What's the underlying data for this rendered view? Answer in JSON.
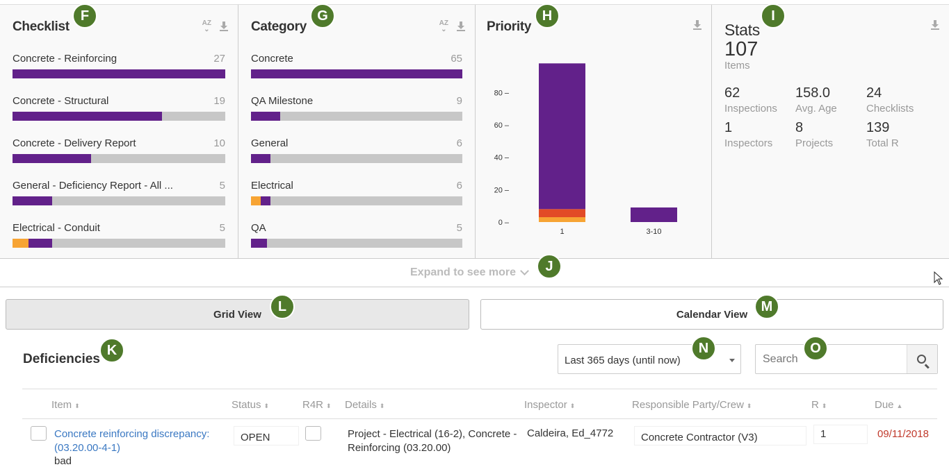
{
  "checklist": {
    "title": "Checklist",
    "sort_label": "AZ",
    "rows": [
      {
        "label": "Concrete - Reinforcing",
        "count": "27"
      },
      {
        "label": "Concrete - Structural",
        "count": "19"
      },
      {
        "label": "Concrete - Delivery Report",
        "count": "10"
      },
      {
        "label": "General - Deficiency Report - All ...",
        "count": "5"
      },
      {
        "label": "Electrical - Conduit",
        "count": "5"
      }
    ]
  },
  "category": {
    "title": "Category",
    "sort_label": "AZ",
    "rows": [
      {
        "label": "Concrete",
        "count": "65"
      },
      {
        "label": "QA Milestone",
        "count": "9"
      },
      {
        "label": "General",
        "count": "6"
      },
      {
        "label": "Electrical",
        "count": "6"
      },
      {
        "label": "QA",
        "count": "5"
      }
    ]
  },
  "priority": {
    "title": "Priority"
  },
  "chart_data": {
    "type": "bar",
    "stacked": true,
    "categories": [
      "1",
      "3-10"
    ],
    "series": [
      {
        "color": "#f7a434",
        "values": [
          3,
          0
        ]
      },
      {
        "color": "#e24b26",
        "values": [
          5,
          0
        ]
      },
      {
        "color": "#62218a",
        "values": [
          90,
          9
        ]
      }
    ],
    "ylim": [
      0,
      99
    ],
    "yticks": [
      "0",
      "20",
      "40",
      "60",
      "80"
    ]
  },
  "stats": {
    "title": "Stats",
    "total": "107",
    "total_label": "Items",
    "cells": [
      {
        "value": "62",
        "label": "Inspections"
      },
      {
        "value": "158.0",
        "label": "Avg. Age"
      },
      {
        "value": "24",
        "label": "Checklists"
      },
      {
        "value": "1",
        "label": "Inspectors"
      },
      {
        "value": "8",
        "label": "Projects"
      },
      {
        "value": "139",
        "label": "Total R"
      }
    ]
  },
  "expand_label": "Expand to see more",
  "views": {
    "grid": "Grid View",
    "calendar": "Calendar View"
  },
  "deficiencies": {
    "title": "Deficiencies",
    "range": "Last 365 days (until now)",
    "search_placeholder": "Search",
    "columns": {
      "item": "Item",
      "status": "Status",
      "r4r": "R4R",
      "details": "Details",
      "inspector": "Inspector",
      "party": "Responsible Party/Crew",
      "r": "R",
      "due": "Due"
    },
    "sort_glyph": "⬍",
    "sort_up_glyph": "▲",
    "rows": [
      {
        "item": "Concrete reinforcing discrepancy:",
        "item_code": "(03.20.00-4-1)",
        "item_note": "bad",
        "status": "OPEN",
        "details_1": "Project - Electrical (16-2), Concrete -",
        "details_2": "Reinforcing (03.20.00)",
        "inspector": "Caldeira, Ed_4772",
        "party": "Concrete Contractor (V3)",
        "r": "1",
        "due": "09/11/2018"
      }
    ]
  },
  "badges": {
    "F": "F",
    "G": "G",
    "H": "H",
    "I": "I",
    "J": "J",
    "K": "K",
    "L": "L",
    "M": "M",
    "N": "N",
    "O": "O"
  },
  "bar_fractions": {
    "checklist": [
      {
        "orange": 0,
        "purple": 1.0
      },
      {
        "orange": 0,
        "purple": 0.704
      },
      {
        "orange": 0,
        "purple": 0.37
      },
      {
        "orange": 0,
        "purple": 0.185
      },
      {
        "orange": 0.074,
        "purple": 0.111
      }
    ],
    "category": [
      {
        "orange": 0,
        "purple": 1.0
      },
      {
        "orange": 0,
        "purple": 0.138
      },
      {
        "orange": 0,
        "purple": 0.092
      },
      {
        "orange": 0.046,
        "purple": 0.046
      },
      {
        "orange": 0,
        "purple": 0.077
      }
    ]
  }
}
